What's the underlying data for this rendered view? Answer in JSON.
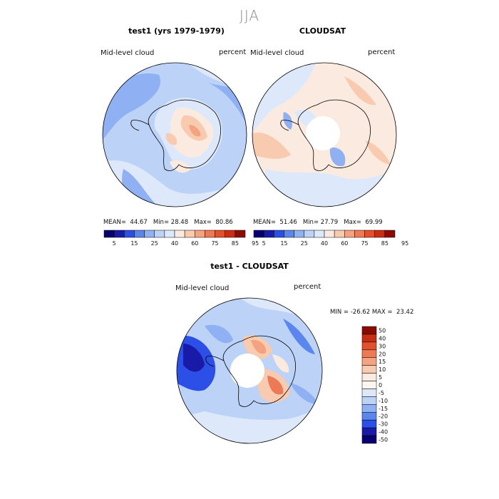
{
  "figure": {
    "season": "JJA",
    "panels": [
      {
        "title": "test1 (yrs 1979-1979)",
        "variable": "Mid-level cloud",
        "units": "percent",
        "mean_label": "MEAN=",
        "mean": "44.67",
        "min_label": "Min=",
        "min": "28.48",
        "max_label": "Max=",
        "max": "80.86"
      },
      {
        "title": "CLOUDSAT",
        "variable": "Mid-level cloud",
        "units": "percent",
        "mean_label": "MEAN=",
        "mean": "51.46",
        "min_label": "Min=",
        "min": "27.79",
        "max_label": "Max=",
        "max": "69.99"
      },
      {
        "title": "test1 - CLOUDSAT",
        "variable": "Mid-level cloud",
        "units": "percent",
        "minmax_text": "MIN = -26.62 MAX =  23.42"
      }
    ],
    "colorbar_abs": {
      "ticks": [
        "5",
        "15",
        "25",
        "40",
        "60",
        "75",
        "85",
        "95"
      ],
      "colors": [
        "#08006e",
        "#1a1aa8",
        "#2c4fe8",
        "#5a86ee",
        "#8fb0f3",
        "#bcd2f7",
        "#dde9fb",
        "#fbeadf",
        "#f8cbb0",
        "#f3a380",
        "#ec7a56",
        "#e2512e",
        "#c82e12",
        "#8c0a05"
      ]
    },
    "colorbar_diff": {
      "ticks": [
        "50",
        "40",
        "30",
        "20",
        "15",
        "10",
        "5",
        "0",
        "-5",
        "-10",
        "-15",
        "-20",
        "-30",
        "-40",
        "-50"
      ],
      "colors": [
        "#8c0a05",
        "#c82e12",
        "#e2512e",
        "#ec7a56",
        "#f3a380",
        "#f8cbb0",
        "#fbeadf",
        "#fdf6f0",
        "#dde9fb",
        "#bcd2f7",
        "#8fb0f3",
        "#5a86ee",
        "#2c4fe8",
        "#1a1aa8",
        "#08006e"
      ]
    }
  }
}
